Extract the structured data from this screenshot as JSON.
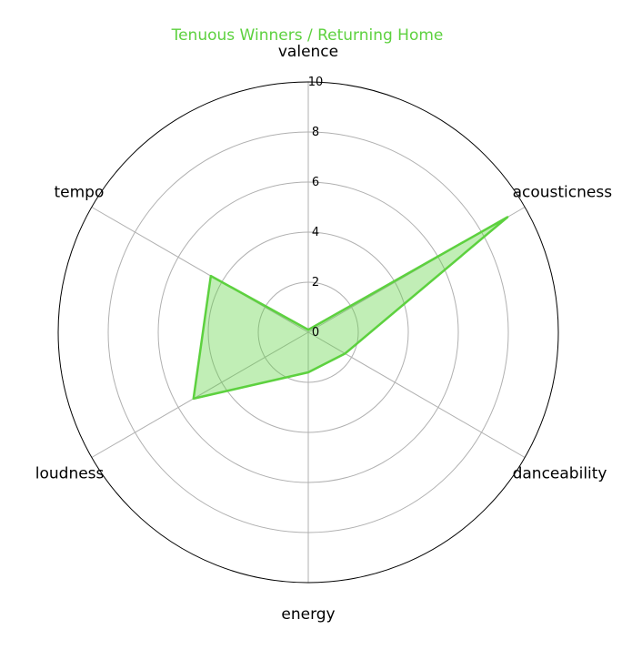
{
  "chart_data": {
    "type": "radar",
    "title": "Tenuous Winners / Returning Home",
    "categories": [
      "valence",
      "acousticness",
      "danceability",
      "energy",
      "loudness",
      "tempo"
    ],
    "series": [
      {
        "values": [
          0.1,
          9.2,
          1.7,
          1.6,
          5.3,
          4.5
        ]
      }
    ],
    "rlim": [
      0,
      10
    ],
    "rticks": [
      "0",
      "2",
      "4",
      "6",
      "8",
      "10"
    ],
    "grid": true,
    "colors": {
      "series": "#5dd13f",
      "fill": "#5dd13f",
      "title": "#5dd13f",
      "grid": "#b0b0b0",
      "frame": "#000000"
    }
  }
}
